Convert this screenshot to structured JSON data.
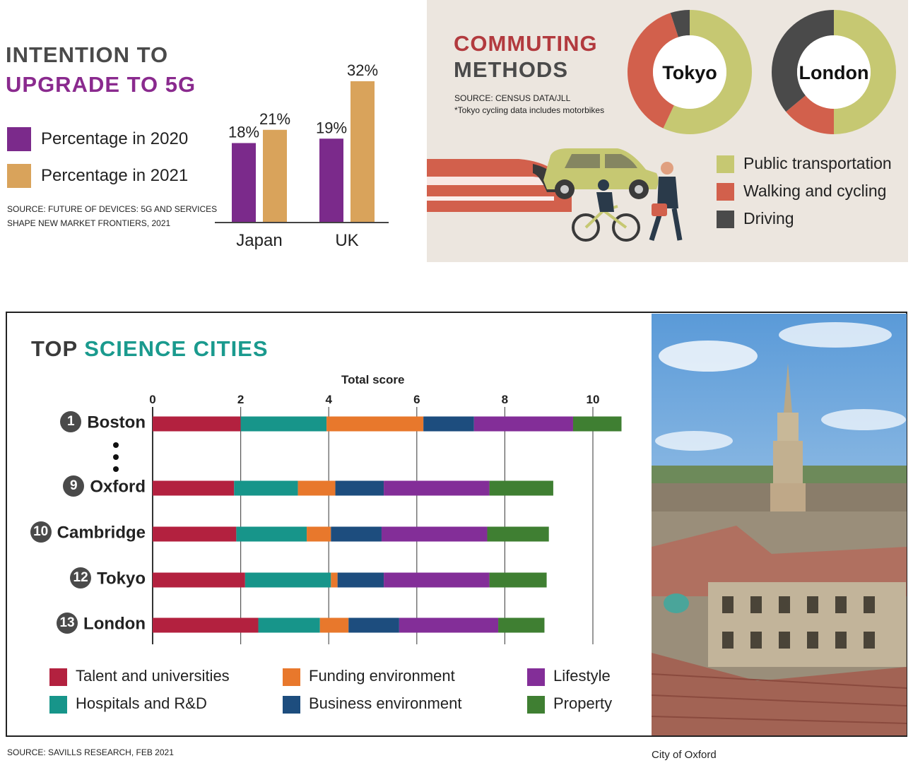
{
  "colors": {
    "purple_2020": "#7b2a8b",
    "orange_2021": "#d9a35b",
    "public_transport": "#c6c872",
    "walking_cycling": "#d2604c",
    "driving": "#4a4a4a",
    "talent": "#b3213f",
    "hospitals": "#17958a",
    "funding": "#e8782c",
    "business": "#1d4d7e",
    "lifestyle": "#832e98",
    "property": "#3f7f32"
  },
  "fiveg": {
    "title_line1": "INTENTION TO",
    "title_line2": "UPGRADE TO 5G",
    "legend_2020": "Percentage in 2020",
    "legend_2021": "Percentage in 2021",
    "source_line1": "SOURCE: FUTURE OF DEVICES: 5G AND SERVICES",
    "source_line2": "SHAPE NEW MARKET FRONTIERS, 2021"
  },
  "commuting": {
    "title_line1": "COMMUTING",
    "title_line2": "METHODS",
    "source_line1": "SOURCE: CENSUS DATA/JLL",
    "source_line2": "*Tokyo cycling data includes motorbikes",
    "city1": "Tokyo",
    "city2": "London",
    "legend": [
      "Public transportation",
      "Walking and cycling",
      "Driving"
    ]
  },
  "science": {
    "title_plain": "TOP ",
    "title_accent": "SCIENCE CITIES",
    "axis_title": "Total score",
    "legend": [
      "Talent and universities",
      "Hospitals and R&D",
      "Funding environment",
      "Business environment",
      "Lifestyle",
      "Property"
    ],
    "source": "SOURCE: SAVILLS RESEARCH, FEB 2021",
    "photo_caption": "City of Oxford"
  },
  "chart_data": [
    {
      "type": "bar",
      "title": "INTENTION TO UPGRADE TO 5G",
      "categories": [
        "Japan",
        "UK"
      ],
      "series": [
        {
          "name": "Percentage in 2020",
          "values": [
            18,
            19
          ],
          "labels": [
            "18%",
            "19%"
          ]
        },
        {
          "name": "Percentage in 2021",
          "values": [
            21,
            32
          ],
          "labels": [
            "21%",
            "32%"
          ]
        }
      ],
      "ylim": [
        0,
        35
      ]
    },
    {
      "type": "pie",
      "title": "COMMUTING METHODS",
      "donut": true,
      "charts": [
        {
          "name": "Tokyo",
          "categories": [
            "Public transportation",
            "Walking and cycling",
            "Driving"
          ],
          "values": [
            57,
            38,
            5
          ]
        },
        {
          "name": "London",
          "categories": [
            "Public transportation",
            "Walking and cycling",
            "Driving"
          ],
          "values": [
            50,
            14,
            36
          ]
        }
      ]
    },
    {
      "type": "bar",
      "orientation": "horizontal",
      "stacked": true,
      "title": "TOP SCIENCE CITIES",
      "xlabel": "Total score",
      "xlim": [
        0,
        10.8
      ],
      "xticks": [
        0,
        2,
        4,
        6,
        8,
        10
      ],
      "categories": [
        "Boston",
        "Oxford",
        "Cambridge",
        "Tokyo",
        "London"
      ],
      "ranks": [
        "1",
        "9",
        "10",
        "12",
        "13"
      ],
      "series": [
        {
          "name": "Talent and universities",
          "values": [
            2.0,
            1.85,
            1.9,
            2.1,
            2.4
          ]
        },
        {
          "name": "Hospitals and R&D",
          "values": [
            1.95,
            1.45,
            1.6,
            1.95,
            1.4
          ]
        },
        {
          "name": "Funding environment",
          "values": [
            2.2,
            0.85,
            0.55,
            0.15,
            0.65
          ]
        },
        {
          "name": "Business environment",
          "values": [
            1.15,
            1.1,
            1.15,
            1.05,
            1.15
          ]
        },
        {
          "name": "Lifestyle",
          "values": [
            2.25,
            2.4,
            2.4,
            2.4,
            2.25
          ]
        },
        {
          "name": "Property",
          "values": [
            1.1,
            1.45,
            1.4,
            1.3,
            1.05
          ]
        }
      ]
    }
  ]
}
